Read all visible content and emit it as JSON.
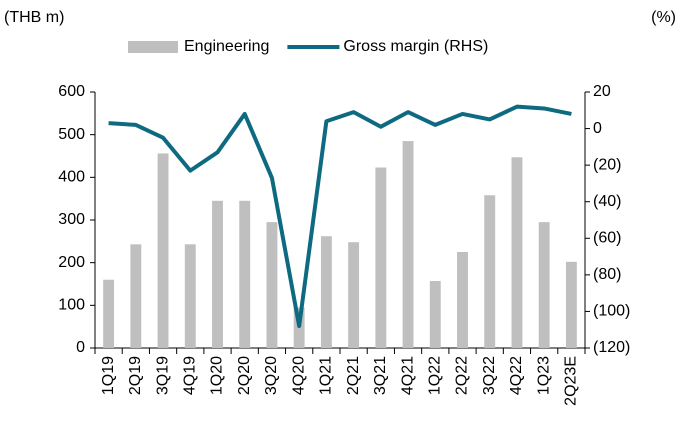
{
  "chart_data": {
    "type": "bar",
    "y_axis_label": "(THB m)",
    "y2_axis_label": "(%)",
    "categories": [
      "1Q19",
      "2Q19",
      "3Q19",
      "4Q19",
      "1Q20",
      "2Q20",
      "3Q20",
      "4Q20",
      "1Q21",
      "2Q21",
      "3Q21",
      "4Q21",
      "1Q22",
      "2Q22",
      "3Q22",
      "4Q22",
      "1Q23",
      "2Q23E"
    ],
    "series": [
      {
        "name": "Engineering",
        "type": "bar",
        "color": "#bfbfbf",
        "values": [
          160,
          243,
          456,
          243,
          345,
          345,
          295,
          95,
          262,
          248,
          423,
          485,
          157,
          225,
          358,
          447,
          295,
          202
        ]
      },
      {
        "name": "Gross margin (RHS)",
        "type": "line",
        "axis": "y2",
        "color": "#0e6a80",
        "values": [
          3,
          2,
          -5,
          -23,
          -13,
          8,
          -27,
          -108,
          4,
          9,
          1,
          9,
          2,
          8,
          5,
          12,
          11,
          8
        ]
      }
    ],
    "ylim": [
      0,
      600
    ],
    "yticks": [
      0,
      100,
      200,
      300,
      400,
      500,
      600
    ],
    "y2lim": [
      -120,
      20
    ],
    "y2ticks": [
      20,
      0,
      {
        "value": -20,
        "label": "(20)"
      },
      {
        "value": -40,
        "label": "(40)"
      },
      {
        "value": -60,
        "label": "(60)"
      },
      {
        "value": -80,
        "label": "(80)"
      },
      {
        "value": -100,
        "label": "(100)"
      },
      {
        "value": -120,
        "label": "(120)"
      }
    ]
  }
}
